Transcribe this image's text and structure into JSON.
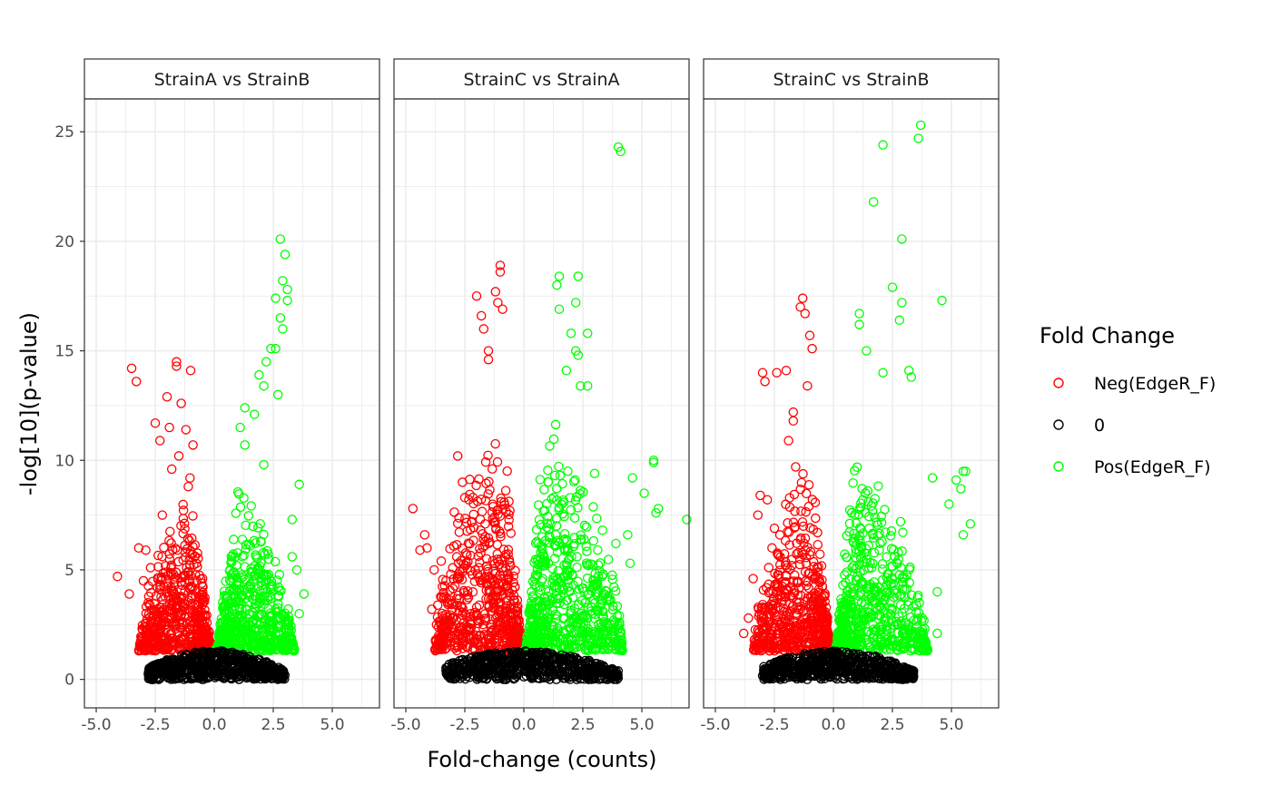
{
  "chart_data": {
    "type": "scatter",
    "xlabel": "Fold-change (counts)",
    "ylabel": "-log[10](p-value)",
    "xlim": [
      -5.5,
      7.0
    ],
    "ylim": [
      -1.3,
      26.5
    ],
    "x_ticks": [
      -5.0,
      -2.5,
      0.0,
      2.5,
      5.0
    ],
    "x_tick_labels": [
      "-5.0",
      "-2.5",
      "0.0",
      "2.5",
      "5.0"
    ],
    "y_ticks": [
      0,
      5,
      10,
      15,
      20,
      25
    ],
    "y_tick_labels": [
      "0",
      "5",
      "10",
      "15",
      "20",
      "25"
    ],
    "grid": true,
    "legend": {
      "title": "Fold Change",
      "position": "right",
      "entries": [
        {
          "label": "Neg(EdgeR_F)",
          "color": "#ff0000"
        },
        {
          "label": "0",
          "color": "#000000"
        },
        {
          "label": "Pos(EdgeR_F)",
          "color": "#00ff00"
        }
      ]
    },
    "facets": [
      {
        "title": "StrainA vs StrainB",
        "neg_points": [
          [
            -4.1,
            4.7
          ],
          [
            -3.5,
            14.2
          ],
          [
            -3.3,
            13.6
          ],
          [
            -3.6,
            3.9
          ],
          [
            -3.2,
            6.0
          ],
          [
            -2.9,
            5.9
          ],
          [
            -3.0,
            4.5
          ],
          [
            -2.5,
            11.7
          ],
          [
            -2.3,
            10.9
          ],
          [
            -2.0,
            12.9
          ],
          [
            -1.9,
            11.5
          ],
          [
            -1.6,
            14.5
          ],
          [
            -1.6,
            14.3
          ],
          [
            -1.4,
            12.6
          ],
          [
            -1.0,
            14.1
          ],
          [
            -1.2,
            11.4
          ],
          [
            -2.8,
            3.5
          ],
          [
            -2.6,
            2.8
          ],
          [
            -2.2,
            7.5
          ],
          [
            -1.8,
            9.6
          ],
          [
            -2.7,
            5.1
          ],
          [
            -2.4,
            4.2
          ],
          [
            -1.5,
            10.2
          ],
          [
            -1.1,
            8.8
          ],
          [
            -0.9,
            10.7
          ]
        ],
        "pos_points": [
          [
            2.8,
            20.1
          ],
          [
            3.0,
            19.4
          ],
          [
            2.9,
            18.2
          ],
          [
            3.1,
            17.8
          ],
          [
            3.1,
            17.3
          ],
          [
            2.6,
            17.4
          ],
          [
            2.8,
            16.5
          ],
          [
            2.9,
            16.0
          ],
          [
            2.4,
            15.1
          ],
          [
            2.6,
            15.1
          ],
          [
            2.2,
            14.5
          ],
          [
            1.9,
            13.9
          ],
          [
            2.1,
            13.4
          ],
          [
            2.7,
            13.0
          ],
          [
            1.3,
            12.4
          ],
          [
            1.7,
            12.1
          ],
          [
            1.1,
            11.5
          ],
          [
            1.3,
            10.7
          ],
          [
            3.6,
            8.9
          ],
          [
            3.3,
            7.3
          ],
          [
            3.5,
            5.0
          ],
          [
            3.3,
            5.6
          ],
          [
            3.8,
            3.9
          ],
          [
            3.6,
            3.0
          ],
          [
            2.1,
            9.8
          ]
        ],
        "neg_cloud": {
          "x_range": [
            -3.2,
            -0.05
          ],
          "y_max": 11.2
        },
        "pos_cloud": {
          "x_range": [
            0.05,
            3.4
          ],
          "y_max": 11.0
        },
        "zero_cloud": {
          "x_range": [
            -2.8,
            3.0
          ],
          "y_max": 1.3
        }
      },
      {
        "title": "StrainC vs StrainA",
        "neg_points": [
          [
            -4.7,
            7.8
          ],
          [
            -4.2,
            6.6
          ],
          [
            -4.1,
            6.0
          ],
          [
            -4.4,
            5.9
          ],
          [
            -3.8,
            5.0
          ],
          [
            -3.5,
            5.4
          ],
          [
            -3.3,
            4.5
          ],
          [
            -2.8,
            10.2
          ],
          [
            -2.6,
            9.0
          ],
          [
            -2.0,
            17.5
          ],
          [
            -1.8,
            16.6
          ],
          [
            -1.7,
            16.0
          ],
          [
            -1.5,
            15.0
          ],
          [
            -1.5,
            14.6
          ],
          [
            -1.2,
            17.7
          ],
          [
            -1.0,
            18.9
          ],
          [
            -1.0,
            18.6
          ],
          [
            -1.1,
            17.2
          ],
          [
            -0.9,
            16.9
          ],
          [
            -3.7,
            2.5
          ],
          [
            -3.9,
            3.2
          ],
          [
            -3.4,
            3.7
          ],
          [
            -2.5,
            8.3
          ],
          [
            -2.2,
            7.2
          ],
          [
            -3.6,
            1.9
          ]
        ],
        "pos_points": [
          [
            4.0,
            24.3
          ],
          [
            4.1,
            24.1
          ],
          [
            1.5,
            18.4
          ],
          [
            1.4,
            18.0
          ],
          [
            2.3,
            18.4
          ],
          [
            2.2,
            17.2
          ],
          [
            1.5,
            16.9
          ],
          [
            2.0,
            15.8
          ],
          [
            1.8,
            14.1
          ],
          [
            2.2,
            15.0
          ],
          [
            2.3,
            14.8
          ],
          [
            2.7,
            15.8
          ],
          [
            2.4,
            13.4
          ],
          [
            2.7,
            13.4
          ],
          [
            5.5,
            9.9
          ],
          [
            5.5,
            10.0
          ],
          [
            4.6,
            9.2
          ],
          [
            5.1,
            8.5
          ],
          [
            5.7,
            7.8
          ],
          [
            5.6,
            7.6
          ],
          [
            6.9,
            7.3
          ],
          [
            4.4,
            6.6
          ],
          [
            4.5,
            5.3
          ],
          [
            3.9,
            6.2
          ],
          [
            3.0,
            9.4
          ]
        ],
        "neg_cloud": {
          "x_range": [
            -3.8,
            -0.05
          ],
          "y_max": 15.0
        },
        "pos_cloud": {
          "x_range": [
            0.05,
            4.2
          ],
          "y_max": 15.0
        },
        "zero_cloud": {
          "x_range": [
            -3.3,
            4.0
          ],
          "y_max": 1.3
        }
      },
      {
        "title": "StrainC vs StrainB",
        "neg_points": [
          [
            -3.8,
            2.1
          ],
          [
            -3.6,
            2.8
          ],
          [
            -3.4,
            4.6
          ],
          [
            -3.2,
            7.5
          ],
          [
            -3.1,
            8.4
          ],
          [
            -3.0,
            14.0
          ],
          [
            -2.9,
            13.6
          ],
          [
            -2.8,
            8.2
          ],
          [
            -2.4,
            14.0
          ],
          [
            -2.0,
            14.1
          ],
          [
            -1.7,
            12.2
          ],
          [
            -1.7,
            11.8
          ],
          [
            -1.4,
            17.0
          ],
          [
            -1.3,
            17.4
          ],
          [
            -1.2,
            16.7
          ],
          [
            -1.0,
            15.7
          ],
          [
            -0.9,
            15.1
          ],
          [
            -2.5,
            6.9
          ],
          [
            -2.6,
            6.0
          ],
          [
            -2.3,
            4.6
          ],
          [
            -3.0,
            3.3
          ],
          [
            -2.7,
            1.3
          ],
          [
            -1.9,
            10.9
          ],
          [
            -1.6,
            9.7
          ],
          [
            -1.1,
            13.4
          ]
        ],
        "pos_points": [
          [
            3.7,
            25.3
          ],
          [
            3.6,
            24.7
          ],
          [
            2.1,
            24.4
          ],
          [
            1.7,
            21.8
          ],
          [
            2.9,
            20.1
          ],
          [
            2.5,
            17.9
          ],
          [
            4.6,
            17.3
          ],
          [
            2.9,
            17.2
          ],
          [
            1.1,
            16.7
          ],
          [
            1.1,
            16.2
          ],
          [
            2.8,
            16.4
          ],
          [
            3.2,
            14.1
          ],
          [
            3.3,
            13.8
          ],
          [
            1.4,
            15.0
          ],
          [
            2.1,
            14.0
          ],
          [
            5.5,
            9.5
          ],
          [
            5.6,
            9.5
          ],
          [
            5.2,
            9.1
          ],
          [
            5.4,
            8.7
          ],
          [
            5.8,
            7.1
          ],
          [
            5.5,
            6.6
          ],
          [
            4.9,
            8.0
          ],
          [
            4.2,
            9.2
          ],
          [
            4.4,
            4.0
          ],
          [
            4.4,
            2.1
          ]
        ],
        "neg_cloud": {
          "x_range": [
            -3.4,
            -0.05
          ],
          "y_max": 12.5
        },
        "pos_cloud": {
          "x_range": [
            0.05,
            4.0
          ],
          "y_max": 13.0
        },
        "zero_cloud": {
          "x_range": [
            -3.0,
            3.4
          ],
          "y_max": 1.3
        }
      }
    ]
  }
}
